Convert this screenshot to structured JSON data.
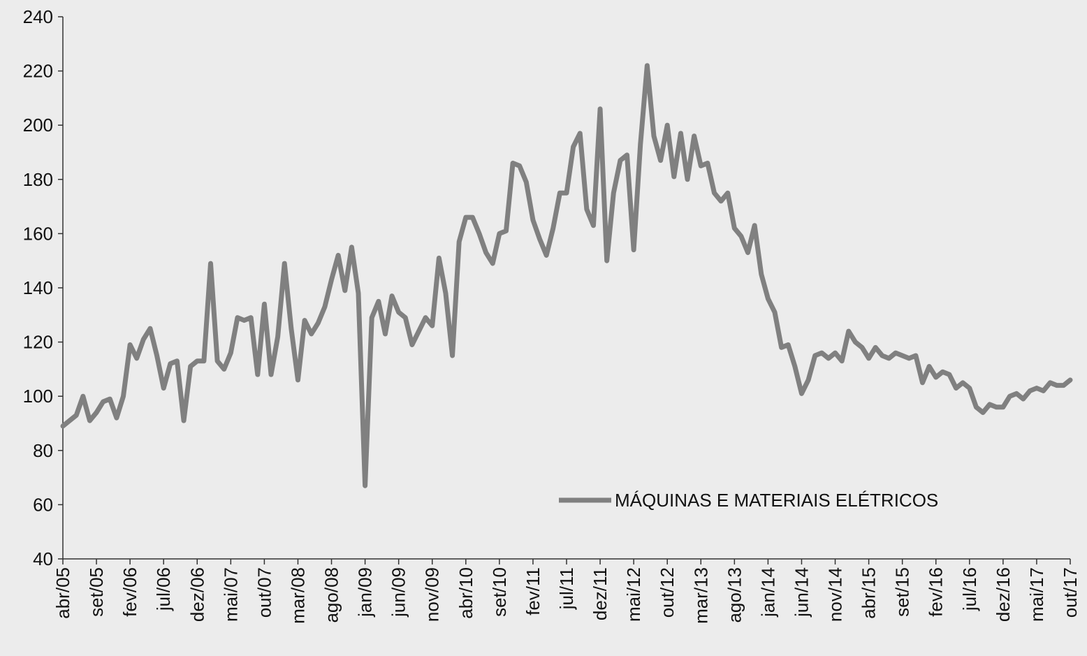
{
  "chart_data": {
    "type": "line",
    "categories": [
      "abr/05",
      null,
      null,
      null,
      null,
      "set/05",
      null,
      null,
      null,
      null,
      "fev/06",
      null,
      null,
      null,
      null,
      "jul/06",
      null,
      null,
      null,
      null,
      "dez/06",
      null,
      null,
      null,
      null,
      "mai/07",
      null,
      null,
      null,
      null,
      "out/07",
      null,
      null,
      null,
      null,
      "mar/08",
      null,
      null,
      null,
      null,
      "ago/08",
      null,
      null,
      null,
      null,
      "jan/09",
      null,
      null,
      null,
      null,
      "jun/09",
      null,
      null,
      null,
      null,
      "nov/09",
      null,
      null,
      null,
      null,
      "abr/10",
      null,
      null,
      null,
      null,
      "set/10",
      null,
      null,
      null,
      null,
      "fev/11",
      null,
      null,
      null,
      null,
      "jul/11",
      null,
      null,
      null,
      null,
      "dez/11",
      null,
      null,
      null,
      null,
      "mai/12",
      null,
      null,
      null,
      null,
      "out/12",
      null,
      null,
      null,
      null,
      "mar/13",
      null,
      null,
      null,
      null,
      "ago/13",
      null,
      null,
      null,
      null,
      "jan/14",
      null,
      null,
      null,
      null,
      "jun/14",
      null,
      null,
      null,
      null,
      "nov/14",
      null,
      null,
      null,
      null,
      "abr/15",
      null,
      null,
      null,
      null,
      "set/15",
      null,
      null,
      null,
      null,
      "fev/16",
      null,
      null,
      null,
      null,
      "jul/16",
      null,
      null,
      null,
      null,
      "dez/16",
      null,
      null,
      null,
      null,
      "mai/17",
      null,
      null,
      null,
      null,
      "out/17"
    ],
    "series": [
      {
        "name": "MÁQUINAS E MATERIAIS ELÉTRICOS",
        "color": "#808080",
        "values": [
          89,
          91,
          93,
          100,
          91,
          94,
          98,
          99,
          92,
          100,
          119,
          114,
          121,
          125,
          115,
          103,
          112,
          113,
          91,
          111,
          113,
          113,
          149,
          113,
          110,
          116,
          129,
          128,
          129,
          108,
          134,
          108,
          122,
          149,
          125,
          106,
          128,
          123,
          127,
          133,
          143,
          152,
          139,
          155,
          138,
          67,
          129,
          135,
          123,
          137,
          131,
          129,
          119,
          124,
          129,
          126,
          151,
          138,
          115,
          157,
          166,
          166,
          160,
          153,
          149,
          160,
          161,
          186,
          185,
          179,
          165,
          158,
          152,
          162,
          175,
          175,
          192,
          197,
          169,
          163,
          206,
          150,
          175,
          187,
          189,
          154,
          193,
          222,
          196,
          187,
          200,
          181,
          197,
          180,
          196,
          185,
          186,
          175,
          172,
          175,
          162,
          159,
          153,
          163,
          145,
          136,
          131,
          118,
          119,
          111,
          101,
          106,
          115,
          116,
          114,
          116,
          113,
          124,
          120,
          118,
          114,
          118,
          115,
          114,
          116,
          115,
          114,
          115,
          105,
          111,
          107,
          109,
          108,
          103,
          105,
          103,
          96,
          94,
          97,
          96,
          96,
          100,
          101,
          99,
          102,
          103,
          102,
          105,
          104,
          104,
          106
        ]
      }
    ],
    "ylim": [
      40,
      240
    ],
    "yticks": [
      40,
      60,
      80,
      100,
      120,
      140,
      160,
      180,
      200,
      220,
      240
    ],
    "legend": "lower right"
  }
}
